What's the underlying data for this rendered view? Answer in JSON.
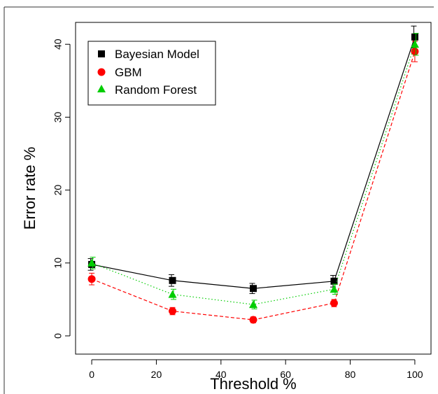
{
  "chart_data": {
    "type": "line",
    "title": "",
    "xlabel": "Threshold %",
    "ylabel": "Error rate %",
    "xlim": [
      -5,
      105
    ],
    "ylim": [
      -2.5,
      43
    ],
    "x_ticks": [
      0,
      20,
      40,
      60,
      80,
      100
    ],
    "y_ticks": [
      0,
      10,
      20,
      30,
      40
    ],
    "grid": false,
    "legend_position": "top-left",
    "x": [
      0,
      25,
      50,
      75,
      100
    ],
    "series": [
      {
        "name": "Bayesian Model",
        "color": "#000000",
        "marker": "square",
        "line_style": "solid",
        "values": [
          9.8,
          7.6,
          6.5,
          7.5,
          41.0
        ],
        "error": [
          0.8,
          0.8,
          0.7,
          0.8,
          1.5
        ]
      },
      {
        "name": "GBM",
        "color": "#ff0000",
        "marker": "circle",
        "line_style": "dashed",
        "values": [
          7.8,
          3.4,
          2.2,
          4.5,
          39.0
        ],
        "error": [
          0.8,
          0.5,
          0.4,
          0.5,
          1.4
        ]
      },
      {
        "name": "Random Forest",
        "color": "#00cd00",
        "marker": "triangle",
        "line_style": "dotted",
        "values": [
          10.0,
          5.7,
          4.3,
          6.4,
          40.0
        ],
        "error": [
          0.8,
          0.7,
          0.6,
          0.7,
          1.5
        ]
      }
    ]
  }
}
